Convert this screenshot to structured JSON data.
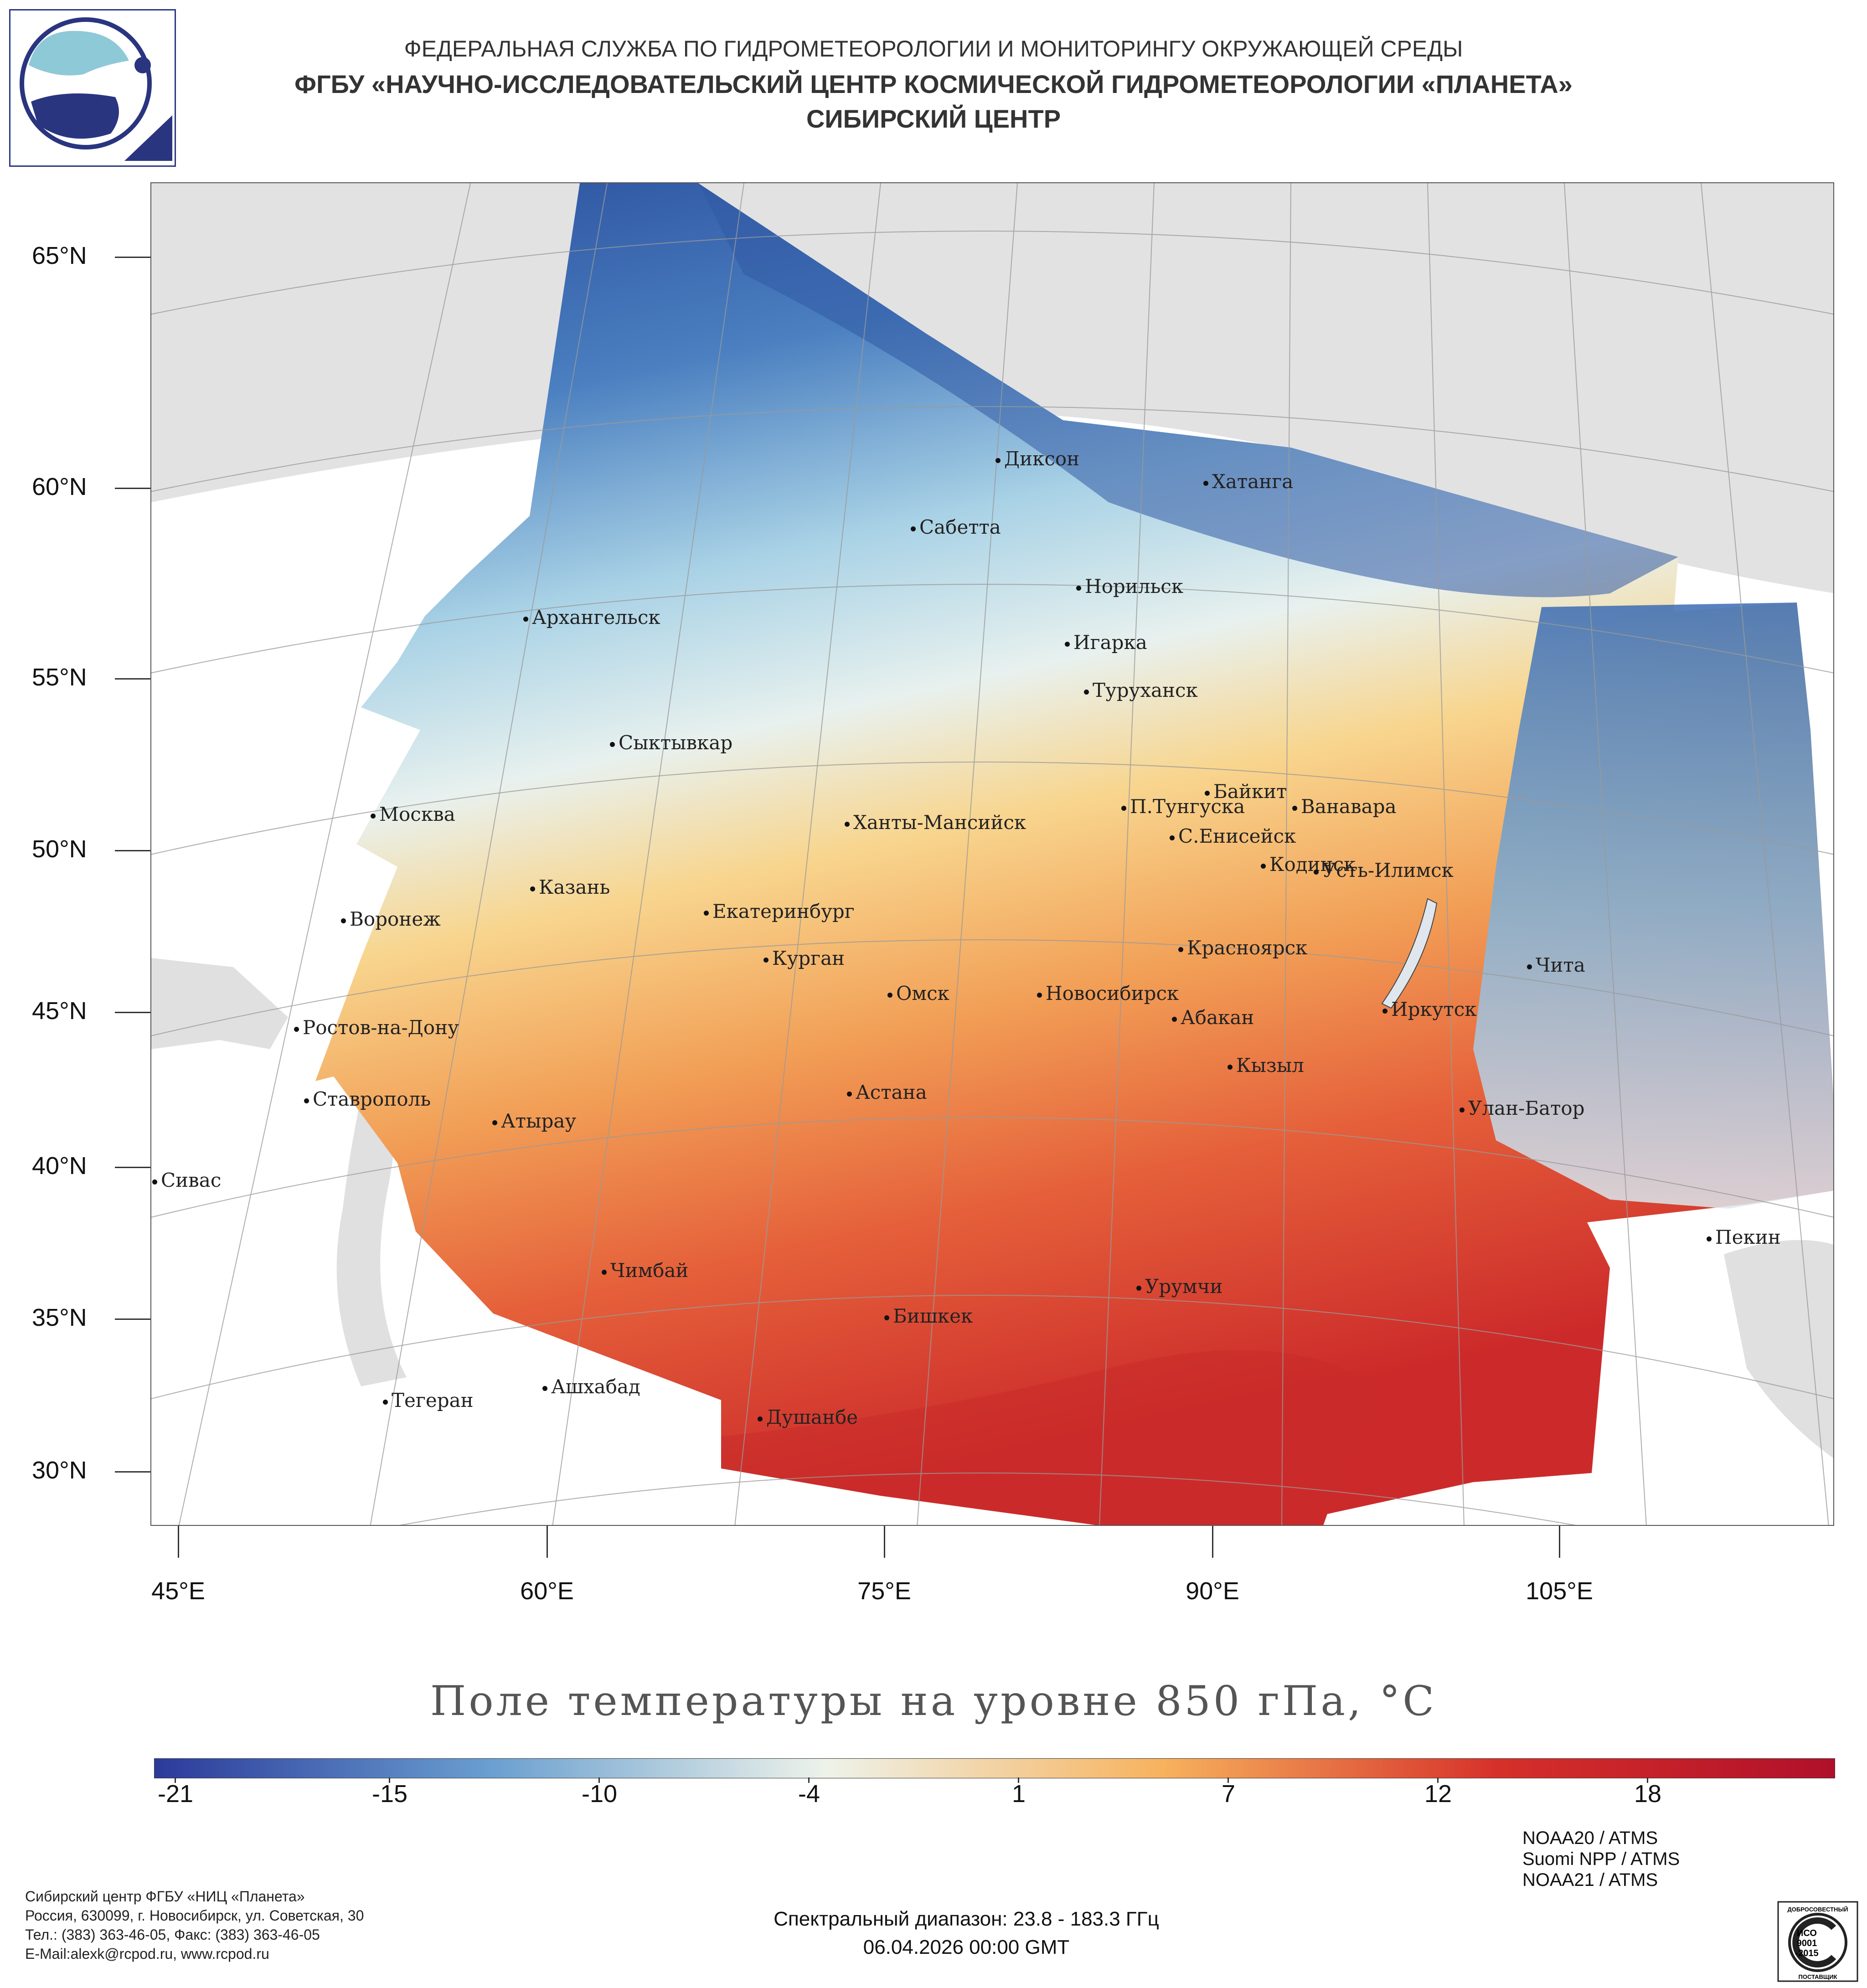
{
  "header": {
    "line1": "ФЕДЕРАЛЬНАЯ СЛУЖБА ПО ГИДРОМЕТЕОРОЛОГИИ И МОНИТОРИНГУ ОКРУЖАЮЩЕЙ СРЕДЫ",
    "line2": "ФГБУ «НАУЧНО-ИССЛЕДОВАТЕЛЬСКИЙ ЦЕНТР КОСМИЧЕСКОЙ ГИДРОМЕТЕОРОЛОГИИ «ПЛАНЕТА»",
    "line3": "СИБИРСКИЙ ЦЕНТР"
  },
  "map": {
    "lat_labels": [
      "65°N",
      "60°N",
      "55°N",
      "50°N",
      "45°N",
      "40°N",
      "35°N",
      "30°N"
    ],
    "lon_labels": [
      "45°E",
      "60°E",
      "75°E",
      "90°E",
      "105°E"
    ],
    "cities": [
      "Диксон",
      "Хатанга",
      "Сабетта",
      "Норильск",
      "Архангельск",
      "Игарка",
      "Туруханск",
      "Сыктывкар",
      "Байкит",
      "Москва",
      "П.Тунгуска",
      "Ванавара",
      "Ханты-Мансийск",
      "С.Енисейск",
      "Кодинск",
      "Усть-Илимск",
      "Казань",
      "Екатеринбург",
      "Воронеж",
      "Красноярск",
      "Курган",
      "Чита",
      "Омск",
      "Новосибирск",
      "Иркутск",
      "Ростов-на-Дону",
      "Абакан",
      "Кызыл",
      "Ставрополь",
      "Астана",
      "Улан-Батор",
      "Атырау",
      "Сивас",
      "Пекин",
      "Чимбай",
      "Урумчи",
      "Бишкек",
      "Ашхабад",
      "Тегеран",
      "Душанбе"
    ]
  },
  "legend": {
    "title": "Поле температуры на уровне 850 гПа, °C",
    "ticks": [
      "-21",
      "-15",
      "-10",
      "-4",
      "1",
      "7",
      "12",
      "18"
    ],
    "colors": {
      "cold": "#2b3a9a",
      "cool": "#6a9fd0",
      "neutral": "#eef3ea",
      "warm": "#f7b25d",
      "hot": "#d6302a",
      "hottest": "#b0102a"
    }
  },
  "footer": {
    "org_lines": [
      "Сибирский центр ФГБУ «НИЦ «Планета»",
      "Россия, 630099, г. Новосибирск, ул. Советская, 30",
      "Тел.: (383) 363-46-05, Факс: (383) 363-46-05",
      "E-Mail:alexk@rcpod.ru, www.rcpod.ru"
    ],
    "spectral": "Спектральный диапазон: 23.8 - 183.3 ГГц",
    "datetime": "06.04.2026 00:00 GMT",
    "satellites": [
      "NOAA20 / ATMS",
      "Suomi NPP / ATMS",
      "NOAA21 / ATMS"
    ],
    "iso": {
      "top": "ДОБРОСОВЕСТНЫЙ",
      "mid1": "ИСО",
      "mid2": "9001",
      "mid3": "-2015",
      "bottom": "ПОСТАВЩИК"
    }
  }
}
